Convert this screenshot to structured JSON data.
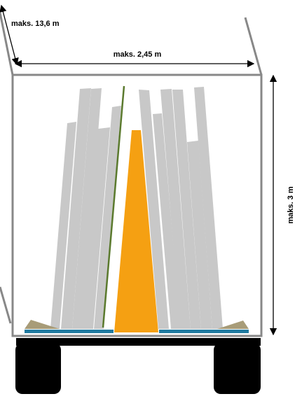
{
  "labels": {
    "length": "maks. 13,6 m",
    "width": "maks. 2,45 m",
    "height": "maks. 3 m"
  }
}
